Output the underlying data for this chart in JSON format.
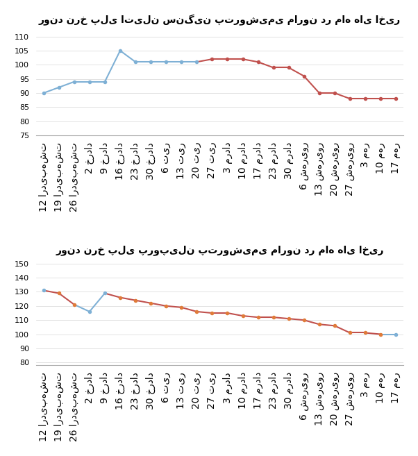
{
  "title1": "روند نرخ پلی اتیلن سنگین پتروشیمی مارون در ماه های اخیر",
  "title2": "روند نرخ پلی پروپیلن پتروشیمی مارون در ماه های اخیر",
  "labels": [
    "12 اردیبهشت",
    "19 اردیبهشت",
    "26 اردیبهشت",
    "2 خرداد",
    "9 خرداد",
    "16 خرداد",
    "23 خرداد",
    "30 خرداد",
    "6 تیر",
    "13 تیر",
    "20 تیر",
    "27 تیر",
    "3 مرداد",
    "10 مرداد",
    "17 مرداد",
    "23 مرداد",
    "30 مرداد",
    "6 شهریور",
    "13 شهریور",
    "20 شهریور",
    "27 شهریور",
    "3 مهر",
    "10 مهر",
    "17 مهر"
  ],
  "values1": [
    90,
    92,
    94,
    94,
    94,
    105,
    101,
    101,
    101,
    101,
    101,
    102,
    102,
    102,
    101,
    99,
    99,
    96,
    90,
    90,
    88,
    88,
    88,
    88
  ],
  "colors1": [
    "blue",
    "blue",
    "blue",
    "blue",
    "blue",
    "blue",
    "blue",
    "blue",
    "blue",
    "blue",
    "blue",
    "red",
    "red",
    "red",
    "red",
    "red",
    "red",
    "red",
    "red",
    "red",
    "red",
    "red",
    "red",
    "red"
  ],
  "values2": [
    131,
    129,
    121,
    116,
    129,
    126,
    124,
    122,
    120,
    119,
    116,
    115,
    115,
    113,
    112,
    112,
    111,
    110,
    107,
    106,
    101,
    101,
    100,
    100
  ],
  "colors2": [
    "blue",
    "red",
    "red",
    "blue",
    "blue",
    "red",
    "red",
    "red",
    "red",
    "red",
    "red",
    "red",
    "red",
    "red",
    "red",
    "red",
    "red",
    "red",
    "red",
    "red",
    "red",
    "red",
    "red",
    "blue"
  ],
  "ylim1": [
    75,
    112
  ],
  "yticks1": [
    75,
    80,
    85,
    90,
    95,
    100,
    105,
    110
  ],
  "ylim2": [
    78,
    152
  ],
  "yticks2": [
    80,
    90,
    100,
    110,
    120,
    130,
    140,
    150
  ],
  "dot_color1_blue": "#7eb0d5",
  "dot_color1_red": "#c0504d",
  "line_color1_blue": "#7eb0d5",
  "line_color1_red": "#c0504d",
  "dot_color2_orange": "#e07b39",
  "dot_color2_blue": "#7eb0d5",
  "line_color2_red": "#c0504d",
  "line_color2_blue": "#7eb0d5",
  "bg_color": "#ffffff"
}
